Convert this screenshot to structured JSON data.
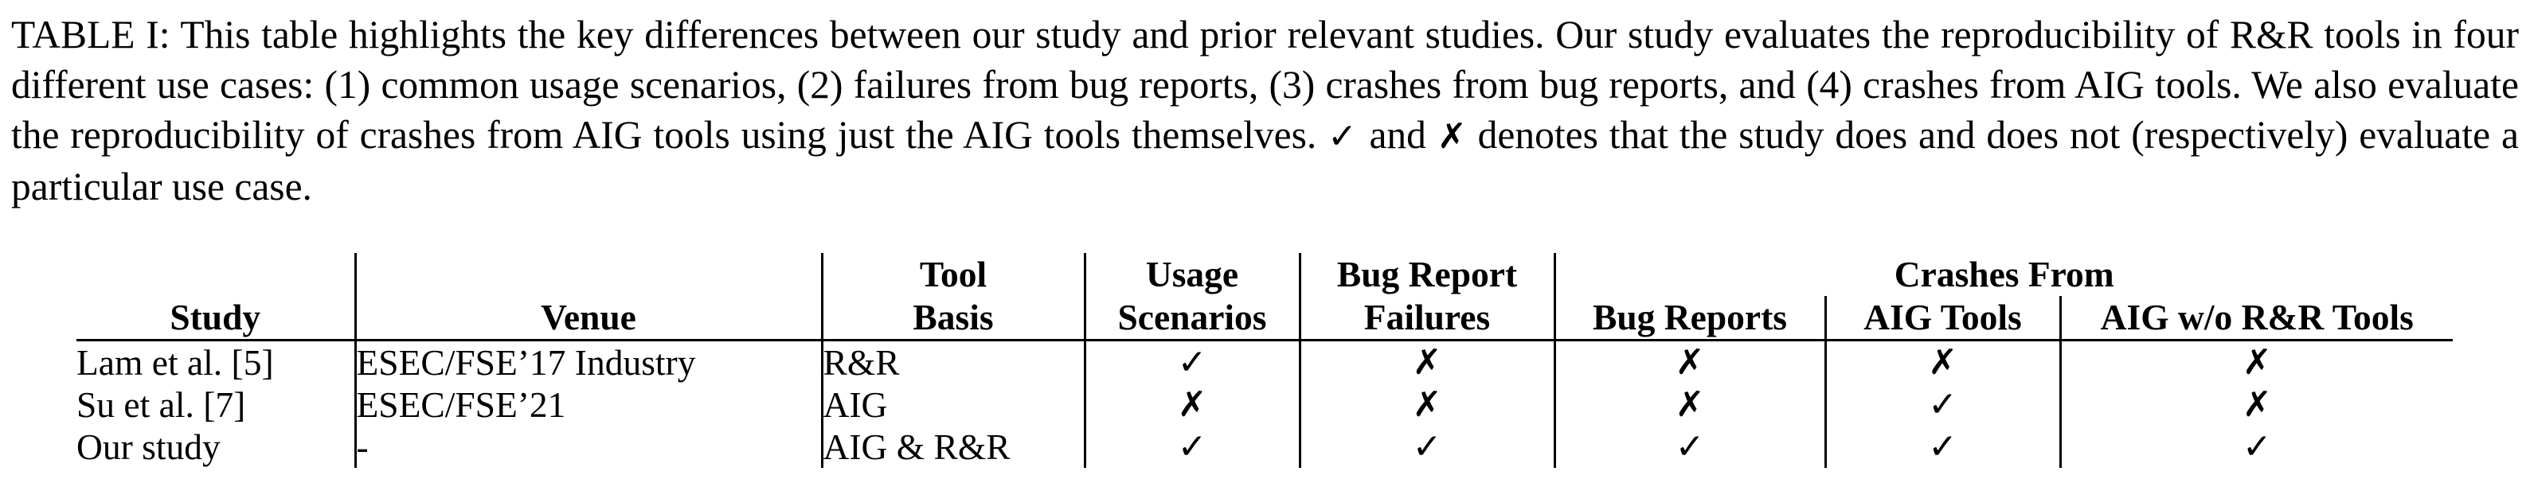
{
  "caption": {
    "prefix": "TABLE I: This table highlights the key differences between our study and prior relevant studies. Our study evaluates the reproducibility of R&R tools in four different use cases: (1) common usage scenarios, (2) failures from bug reports, (3) crashes from bug reports, and (4) crashes from AIG tools. We also evaluate the reproducibility of crashes from AIG tools using just the AIG tools themselves. ",
    "mark_yes": "✓",
    "middle": " and ",
    "mark_no": "✗",
    "suffix": " denotes that the study does and does not (respectively) evaluate a particular use case."
  },
  "table": {
    "headers": {
      "study": "Study",
      "venue": "Venue",
      "tool_basis_line1": "Tool",
      "tool_basis_line2": "Basis",
      "usage_line1": "Usage",
      "usage_line2": "Scenarios",
      "bugfail_line1": "Bug Report",
      "bugfail_line2": "Failures",
      "crashes_from": "Crashes From",
      "crash_bug_reports": "Bug Reports",
      "crash_aig_tools": "AIG Tools",
      "crash_aig_wo": "AIG w/o R&R Tools"
    },
    "rows": [
      {
        "study": "Lam et al. [5]",
        "venue": "ESEC/FSE’17 Industry",
        "tool_basis": "R&R",
        "usage": "✓",
        "bug_failures": "✗",
        "crash_bug_reports": "✗",
        "crash_aig_tools": "✗",
        "crash_aig_wo": "✗"
      },
      {
        "study": "Su et al. [7]",
        "venue": "ESEC/FSE’21",
        "tool_basis": "AIG",
        "usage": "✗",
        "bug_failures": "✗",
        "crash_bug_reports": "✗",
        "crash_aig_tools": "✓",
        "crash_aig_wo": "✗"
      },
      {
        "study": "Our study",
        "venue": "-",
        "tool_basis": "AIG & R&R",
        "usage": "✓",
        "bug_failures": "✓",
        "crash_bug_reports": "✓",
        "crash_aig_tools": "✓",
        "crash_aig_wo": "✓"
      }
    ]
  }
}
